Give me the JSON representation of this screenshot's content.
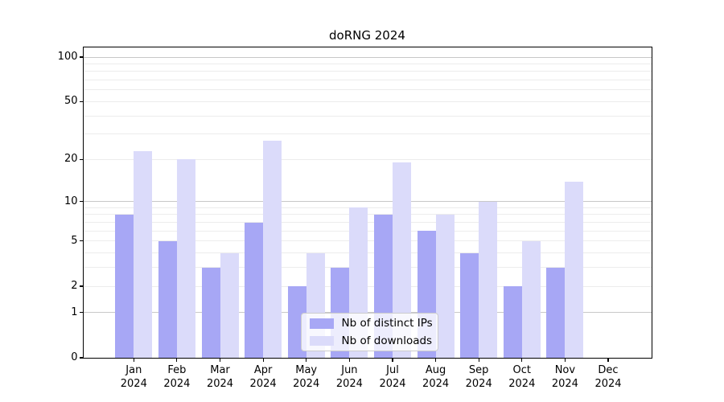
{
  "chart_data": {
    "type": "bar",
    "title": "doRNG 2024",
    "scale": "log1p",
    "grid": "on",
    "legend_position": "lower center inside",
    "categories": [
      "Jan",
      "Feb",
      "Mar",
      "Apr",
      "May",
      "Jun",
      "Jul",
      "Aug",
      "Sep",
      "Oct",
      "Nov",
      "Dec"
    ],
    "category_year": "2024",
    "series": [
      {
        "name": "Nb of distinct IPs",
        "color": "#a7a7f5",
        "values": [
          8,
          5,
          3,
          7,
          2,
          3,
          8,
          6,
          4,
          2,
          3,
          0
        ]
      },
      {
        "name": "Nb of downloads",
        "color": "#dbdbfa",
        "values": [
          23,
          20,
          4,
          27,
          4,
          9,
          19,
          8,
          10,
          5,
          14,
          0
        ]
      }
    ],
    "xlabel": "",
    "ylabel": "",
    "ylim": [
      0,
      116
    ],
    "yticks": [
      0,
      1,
      2,
      5,
      10,
      20,
      50,
      100
    ],
    "major_gridlines": [
      1,
      10,
      100
    ],
    "minor_gridlines": [
      2,
      3,
      4,
      5,
      6,
      7,
      8,
      9,
      20,
      30,
      40,
      50,
      60,
      70,
      80,
      90
    ]
  },
  "colors": {
    "axis": "#000000",
    "major_grid": "#c8c8c8",
    "minor_grid": "#ececec",
    "legend_border": "#cccccc",
    "background": "#ffffff",
    "text": "#000000"
  }
}
